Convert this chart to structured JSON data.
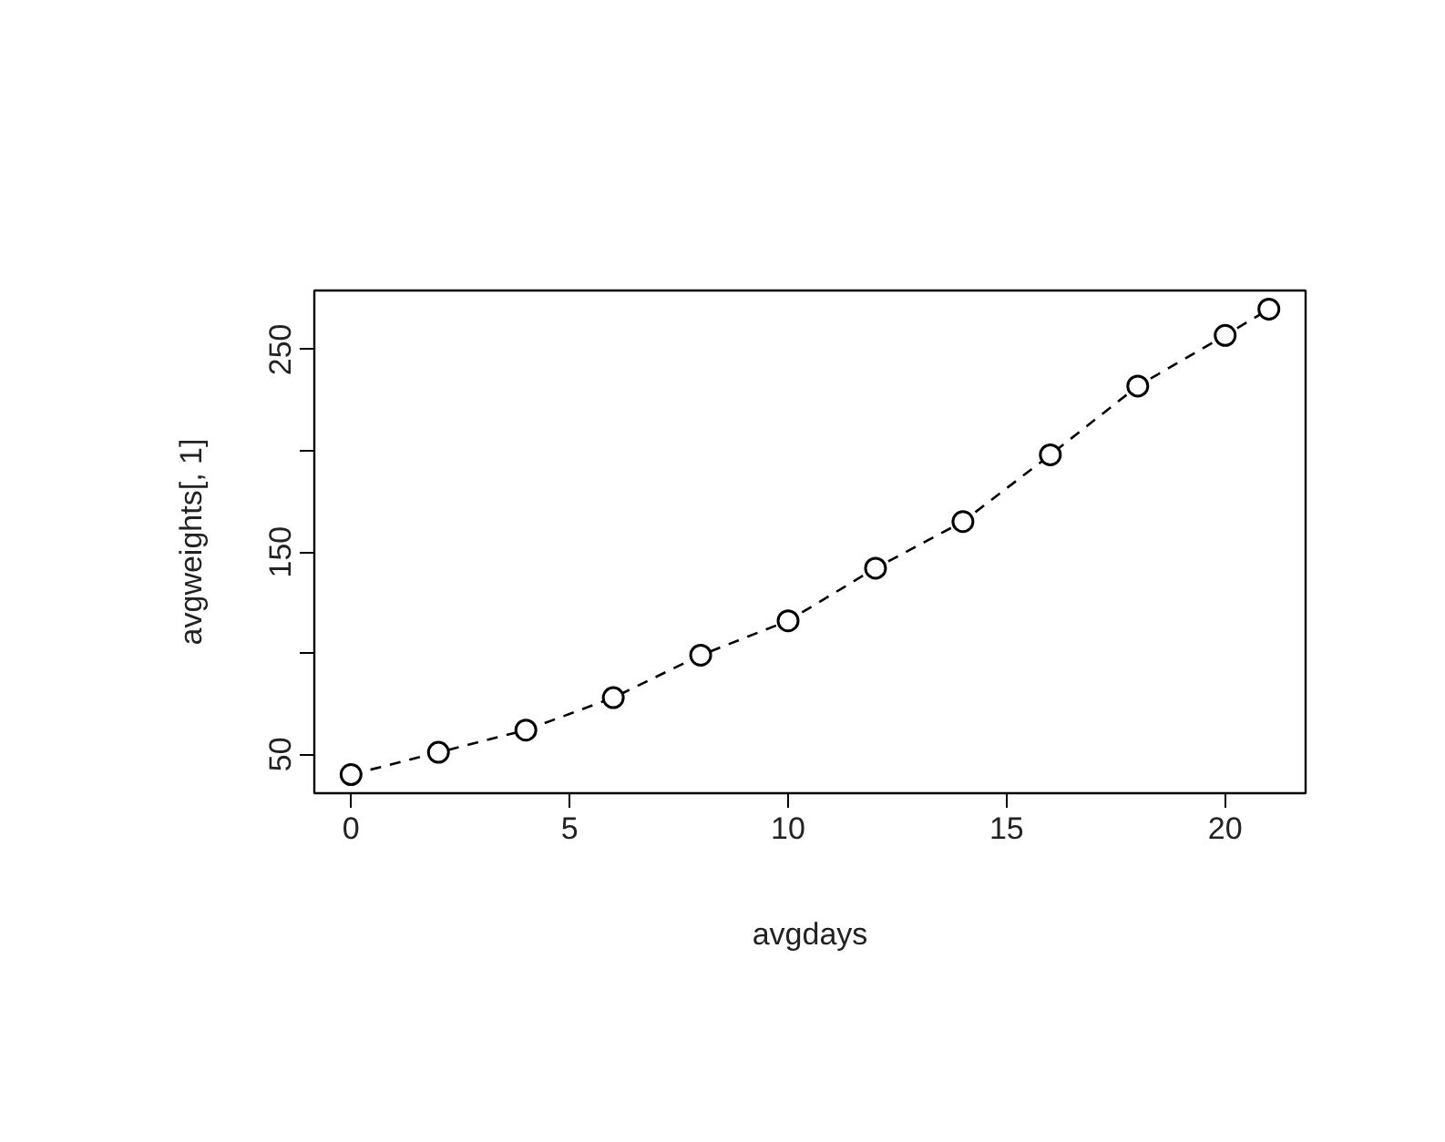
{
  "chart_data": {
    "type": "line",
    "xlabel": "avgdays",
    "ylabel": "avgweights[, 1]",
    "x": [
      0,
      2,
      4,
      6,
      8,
      10,
      12,
      14,
      16,
      18,
      20,
      21
    ],
    "series": [
      {
        "color": "#000000",
        "values": [
          40,
          51,
          62,
          78,
          99,
          116,
          142,
          165,
          198,
          232,
          257,
          270
        ]
      }
    ],
    "xlim": [
      -0.84,
      21.84
    ],
    "ylim": [
      30.8,
      279.2
    ],
    "xticks": [
      0,
      5,
      10,
      15,
      20
    ],
    "yticks": [
      50,
      {
        "value": 100,
        "label": null
      },
      150,
      {
        "value": 200,
        "label": null
      },
      250
    ],
    "grid": false,
    "marker": "circle",
    "line_style": "dashed"
  }
}
